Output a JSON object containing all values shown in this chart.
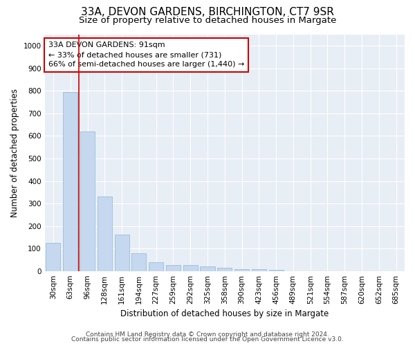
{
  "title1": "33A, DEVON GARDENS, BIRCHINGTON, CT7 9SR",
  "title2": "Size of property relative to detached houses in Margate",
  "xlabel": "Distribution of detached houses by size in Margate",
  "ylabel": "Number of detached properties",
  "categories": [
    "30sqm",
    "63sqm",
    "96sqm",
    "128sqm",
    "161sqm",
    "194sqm",
    "227sqm",
    "259sqm",
    "292sqm",
    "325sqm",
    "358sqm",
    "390sqm",
    "423sqm",
    "456sqm",
    "489sqm",
    "521sqm",
    "554sqm",
    "587sqm",
    "620sqm",
    "652sqm",
    "685sqm"
  ],
  "values": [
    125,
    795,
    620,
    330,
    162,
    78,
    40,
    28,
    27,
    22,
    15,
    8,
    8,
    5,
    0,
    0,
    0,
    0,
    0,
    0,
    0
  ],
  "bar_color": "#c5d8f0",
  "bar_edge_color": "#9bbcd8",
  "vline_x": 2,
  "vline_color": "#cc0000",
  "annotation_text": "33A DEVON GARDENS: 91sqm\n← 33% of detached houses are smaller (731)\n66% of semi-detached houses are larger (1,440) →",
  "annotation_box_color": "#ffffff",
  "annotation_box_edge": "#cc0000",
  "ylim": [
    0,
    1050
  ],
  "yticks": [
    0,
    100,
    200,
    300,
    400,
    500,
    600,
    700,
    800,
    900,
    1000
  ],
  "footer1": "Contains HM Land Registry data © Crown copyright and database right 2024.",
  "footer2": "Contains public sector information licensed under the Open Government Licence v3.0.",
  "bg_color": "#ffffff",
  "plot_bg_color": "#e8eef5",
  "grid_color": "#ffffff",
  "title1_fontsize": 11,
  "title2_fontsize": 9.5,
  "annotation_fontsize": 8,
  "axis_label_fontsize": 8.5,
  "tick_fontsize": 7.5,
  "footer_fontsize": 6.5
}
